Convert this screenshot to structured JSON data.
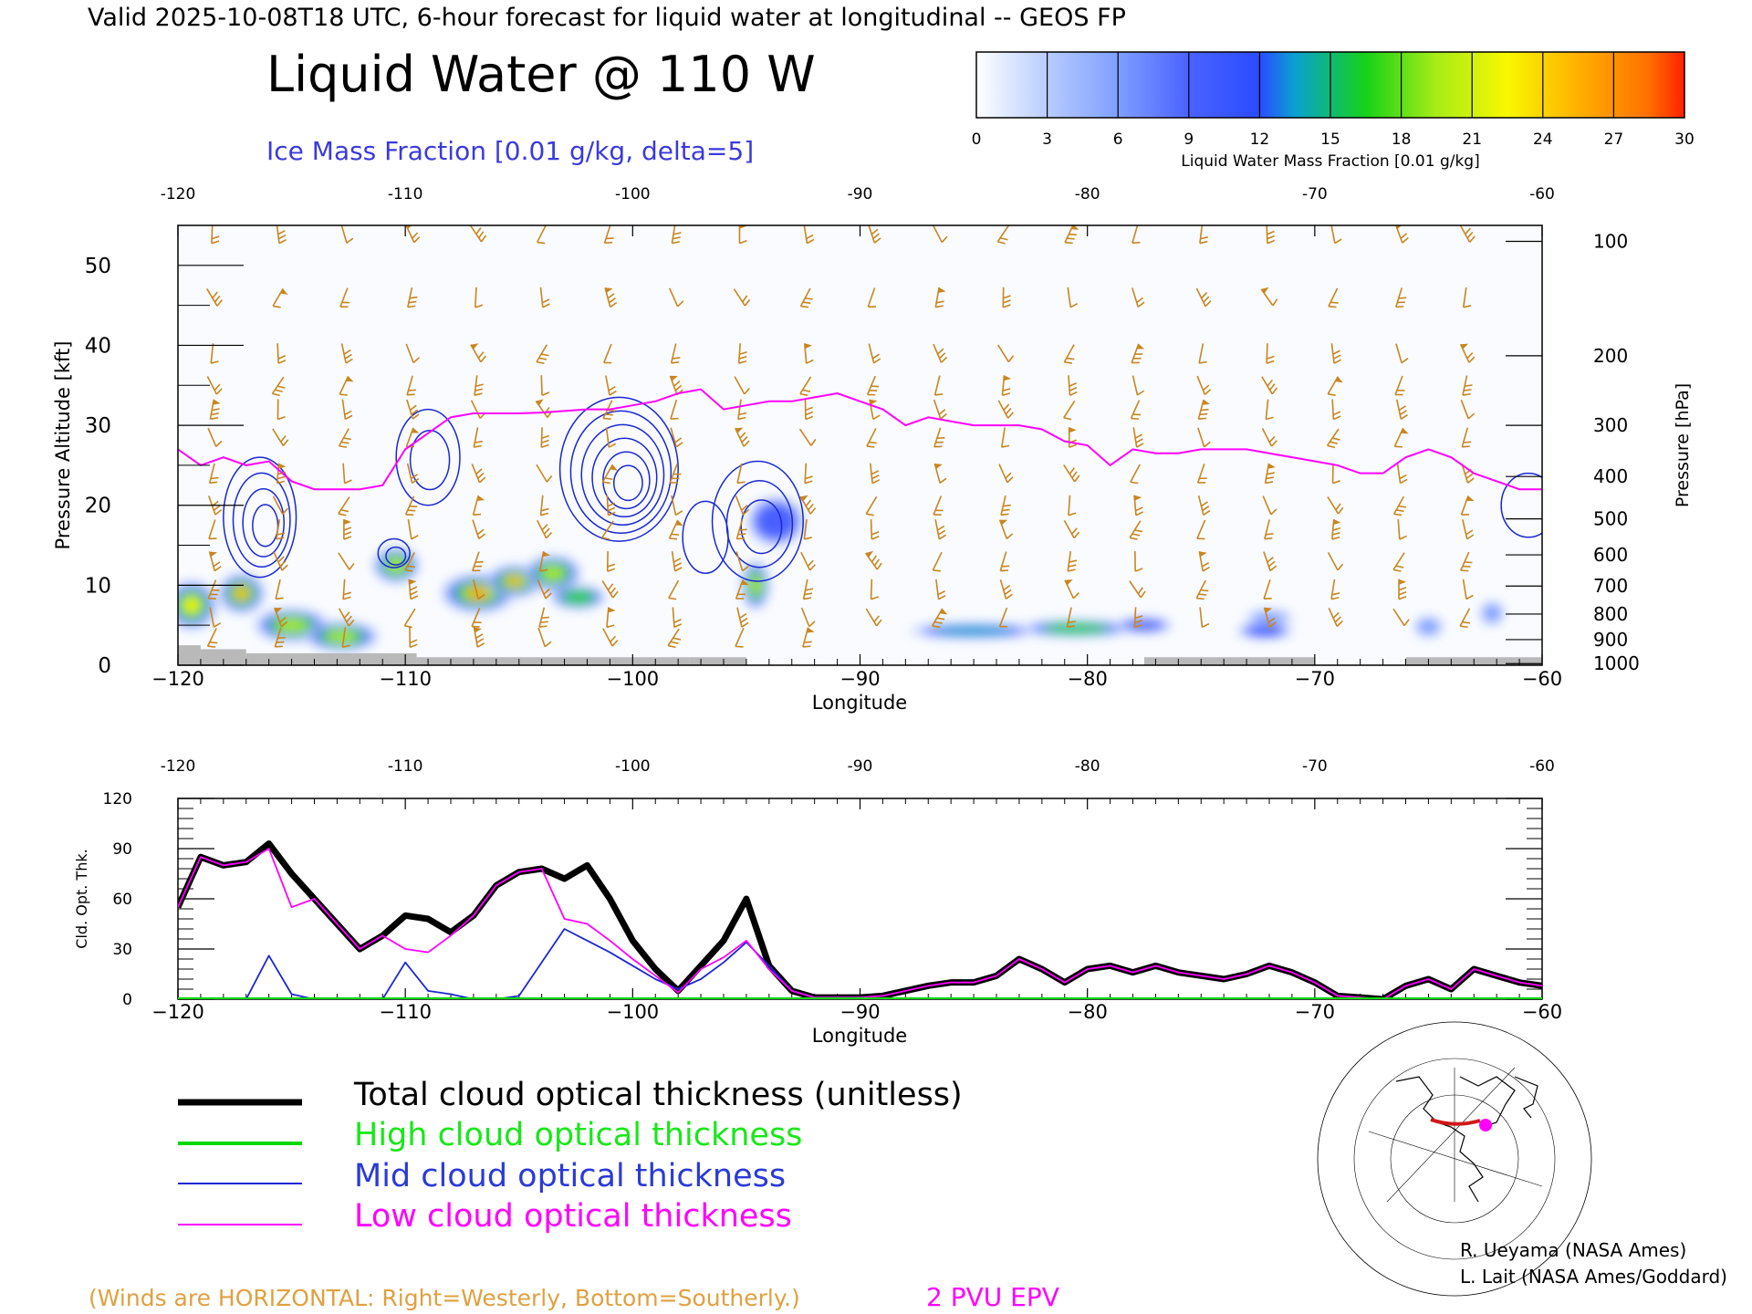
{
  "header": {
    "valid_line": "Valid 2025-10-08T18 UTC, 6-hour forecast for liquid water at longitudinal -- GEOS FP",
    "title": "Liquid Water @ 110 W",
    "ice_label": "Ice Mass Fraction [0.01 g/kg, delta=5]"
  },
  "colorbar": {
    "ticks": [
      "0",
      "3",
      "6",
      "9",
      "12",
      "15",
      "18",
      "21",
      "24",
      "27",
      "30"
    ],
    "label": "Liquid Water Mass Fraction [0.01 g/kg]",
    "colors": [
      "#ffffff",
      "#b8ccff",
      "#7f9fff",
      "#4a62ff",
      "#2a4cff",
      "#0aa0d0",
      "#16d218",
      "#a8ec18",
      "#f8f800",
      "#ffb000",
      "#ff7000",
      "#ff2000"
    ]
  },
  "colors": {
    "wind_barbs": "#c8861e",
    "ice_contour": "#1a28d2",
    "epv": "#ff00ff",
    "total": "#000000",
    "high": "#00d800",
    "mid": "#1a28d2",
    "low": "#ff00ff",
    "ground": "#b9b9b9"
  },
  "chart_data": [
    {
      "type": "heatmap",
      "title": "Liquid Water @ 110 W",
      "xlabel": "Longitude",
      "ylabel": "Pressure Altitude [kft]",
      "ylabel_right": "Pressure [hPa]",
      "xlim": [
        -120,
        -60
      ],
      "ylim": [
        0,
        55
      ],
      "xticks": [
        "−120",
        "−110",
        "−100",
        "−90",
        "−80",
        "−70",
        "−60"
      ],
      "top_xticks": [
        "-120",
        "-110",
        "-100",
        "-90",
        "-80",
        "-70",
        "-60"
      ],
      "yticks": [
        "0",
        "10",
        "20",
        "30",
        "40",
        "50"
      ],
      "right_ticks": [
        {
          "label": "100",
          "alt": 53
        },
        {
          "label": "200",
          "alt": 38.7
        },
        {
          "label": "300",
          "alt": 30
        },
        {
          "label": "400",
          "alt": 23.6
        },
        {
          "label": "500",
          "alt": 18.3
        },
        {
          "label": "600",
          "alt": 13.8
        },
        {
          "label": "700",
          "alt": 9.9
        },
        {
          "label": "800",
          "alt": 6.4
        },
        {
          "label": "900",
          "alt": 3.2
        },
        {
          "label": "1000",
          "alt": 0.2
        }
      ],
      "liquid_water_blobs": [
        {
          "lon": -119.4,
          "alt": 7.5,
          "rlon": 1.1,
          "ralt": 3.0,
          "value": 20
        },
        {
          "lon": -117.2,
          "alt": 9.0,
          "rlon": 1.0,
          "ralt": 2.5,
          "value": 25
        },
        {
          "lon": -115.0,
          "alt": 5.0,
          "rlon": 1.6,
          "ralt": 2.0,
          "value": 17
        },
        {
          "lon": -112.8,
          "alt": 3.6,
          "rlon": 1.6,
          "ralt": 1.8,
          "value": 17
        },
        {
          "lon": -110.4,
          "alt": 12.5,
          "rlon": 1.0,
          "ralt": 2.2,
          "value": 18
        },
        {
          "lon": -106.8,
          "alt": 9.0,
          "rlon": 1.6,
          "ralt": 2.4,
          "value": 26
        },
        {
          "lon": -105.2,
          "alt": 10.5,
          "rlon": 1.2,
          "ralt": 2.0,
          "value": 24
        },
        {
          "lon": -103.5,
          "alt": 11.5,
          "rlon": 1.2,
          "ralt": 2.2,
          "value": 17
        },
        {
          "lon": -102.4,
          "alt": 8.5,
          "rlon": 1.2,
          "ralt": 1.4,
          "value": 15
        },
        {
          "lon": -94.6,
          "alt": 10.0,
          "rlon": 0.6,
          "ralt": 3.0,
          "value": 18
        },
        {
          "lon": -93.7,
          "alt": 18.0,
          "rlon": 1.2,
          "ralt": 3.0,
          "value": 8
        },
        {
          "lon": -85.0,
          "alt": 4.3,
          "rlon": 2.8,
          "ralt": 0.9,
          "value": 13
        },
        {
          "lon": -80.5,
          "alt": 4.6,
          "rlon": 2.4,
          "ralt": 1.0,
          "value": 15
        },
        {
          "lon": -77.5,
          "alt": 5.0,
          "rlon": 1.2,
          "ralt": 0.9,
          "value": 9
        },
        {
          "lon": -72.2,
          "alt": 4.3,
          "rlon": 1.2,
          "ralt": 0.9,
          "value": 11
        },
        {
          "lon": -72.0,
          "alt": 6.0,
          "rlon": 1.0,
          "ralt": 0.8,
          "value": 6
        },
        {
          "lon": -65.0,
          "alt": 4.8,
          "rlon": 0.6,
          "ralt": 1.2,
          "value": 5
        },
        {
          "lon": -62.2,
          "alt": 6.5,
          "rlon": 0.5,
          "ralt": 1.4,
          "value": 6
        }
      ],
      "ice_contours": [
        {
          "lon": -116.4,
          "alt": 18.5,
          "rlon": 1.6,
          "ralt": 7.5,
          "levels": 4
        },
        {
          "lon": -109.0,
          "alt": 26.0,
          "rlon": 1.4,
          "ralt": 6.0,
          "levels": 2
        },
        {
          "lon": -110.5,
          "alt": 14.0,
          "rlon": 0.7,
          "ralt": 1.8,
          "levels": 2
        },
        {
          "lon": -100.6,
          "alt": 24.5,
          "rlon": 2.6,
          "ralt": 9.0,
          "levels": 6
        },
        {
          "lon": -96.8,
          "alt": 16.0,
          "rlon": 1.0,
          "ralt": 4.5,
          "levels": 1
        },
        {
          "lon": -94.5,
          "alt": 18.0,
          "rlon": 2.0,
          "ralt": 7.5,
          "levels": 3
        },
        {
          "lon": -60.6,
          "alt": 20.0,
          "rlon": 1.2,
          "ralt": 4.0,
          "levels": 1
        }
      ],
      "epv_2pvu": {
        "lon": [
          -120,
          -119,
          -118,
          -117,
          -116,
          -115,
          -114,
          -113,
          -112,
          -111,
          -110,
          -109,
          -108,
          -107,
          -106,
          -105,
          -104,
          -103,
          -102,
          -101,
          -100,
          -99,
          -98,
          -97,
          -96,
          -95,
          -94,
          -93,
          -92,
          -91,
          -90,
          -89,
          -88,
          -87,
          -86,
          -85,
          -84,
          -83,
          -82,
          -81,
          -80,
          -79,
          -78,
          -77,
          -76,
          -75,
          -74,
          -73,
          -72,
          -71,
          -70,
          -69,
          -68,
          -67,
          -66,
          -65,
          -64,
          -63,
          -62,
          -61,
          -60
        ],
        "alt": [
          27,
          25,
          26,
          25,
          25.5,
          23,
          22,
          22,
          22,
          22.5,
          27,
          29,
          31,
          31.5,
          31.5,
          31.5,
          31.6,
          31.8,
          32,
          32,
          32.5,
          33,
          34,
          34.5,
          32,
          32.5,
          33,
          33,
          33.5,
          34,
          33,
          32,
          30,
          31,
          30.5,
          30,
          30,
          30,
          29.5,
          28,
          27.5,
          25,
          27,
          26.5,
          26.5,
          27,
          27,
          27,
          26.5,
          26,
          25.5,
          25,
          24,
          24,
          26,
          27,
          26,
          24,
          23,
          22,
          22
        ]
      },
      "ground_bars": [
        {
          "lon0": -120,
          "lon1": -119,
          "alt": 2.5
        },
        {
          "lon0": -119,
          "lon1": -117,
          "alt": 2.0
        },
        {
          "lon0": -117,
          "lon1": -109.5,
          "alt": 1.5
        },
        {
          "lon0": -109.5,
          "lon1": -97.5,
          "alt": 1.0
        },
        {
          "lon0": -97.5,
          "lon1": -95,
          "alt": 1.0
        },
        {
          "lon0": -77.5,
          "lon1": -70,
          "alt": 1.0
        },
        {
          "lon0": -66,
          "lon1": -60,
          "alt": 1.0
        }
      ],
      "wind_barb_grid": {
        "lon0": -118.5,
        "dlon": 2.9,
        "alts": [
          54,
          46,
          39,
          35,
          32,
          28.5,
          24,
          20,
          17,
          13,
          9.5,
          6,
          3.5
        ]
      }
    },
    {
      "type": "line",
      "ylabel": "Cld. Opt. Thk.",
      "xlabel": "Longitude",
      "xlim": [
        -120,
        -60
      ],
      "ylim": [
        0,
        120
      ],
      "xticks": [
        "−120",
        "−110",
        "−100",
        "−90",
        "−80",
        "−70",
        "−60"
      ],
      "top_xticks": [
        "-120",
        "-110",
        "-100",
        "-90",
        "-80",
        "-70",
        "-60"
      ],
      "yticks": [
        "0",
        "30",
        "60",
        "90",
        "120"
      ],
      "x": [
        -120,
        -119,
        -118,
        -117,
        -116,
        -115,
        -114,
        -113,
        -112,
        -111,
        -110,
        -109,
        -108,
        -107,
        -106,
        -105,
        -104,
        -103,
        -102,
        -101,
        -100,
        -99,
        -98,
        -97,
        -96,
        -95,
        -94,
        -93,
        -92,
        -91,
        -90,
        -89,
        -88,
        -87,
        -86,
        -85,
        -84,
        -83,
        -82,
        -81,
        -80,
        -79,
        -78,
        -77,
        -76,
        -75,
        -74,
        -73,
        -72,
        -71,
        -70,
        -69,
        -68,
        -67,
        -66,
        -65,
        -64,
        -63,
        -62,
        -61,
        -60
      ],
      "series": [
        {
          "name": "Total cloud optical thickness (unitless)",
          "values": [
            55,
            85,
            80,
            82,
            93,
            75,
            60,
            45,
            30,
            38,
            50,
            48,
            40,
            50,
            68,
            76,
            78,
            72,
            80,
            60,
            35,
            18,
            5,
            20,
            35,
            60,
            20,
            5,
            1,
            1,
            1,
            2,
            5,
            8,
            10,
            10,
            14,
            24,
            18,
            10,
            18,
            20,
            16,
            20,
            16,
            14,
            12,
            15,
            20,
            16,
            10,
            2,
            1,
            0,
            8,
            12,
            6,
            18,
            14,
            10,
            8
          ]
        },
        {
          "name": "High cloud optical thickness",
          "values": [
            0,
            0,
            0,
            0,
            0,
            0,
            0,
            0,
            0,
            0,
            0,
            0,
            0,
            0,
            0,
            0,
            0,
            0,
            0,
            0,
            0,
            0,
            0,
            0,
            0,
            0,
            0,
            0,
            0,
            0,
            0,
            0,
            0,
            0,
            0,
            0,
            0,
            0,
            0,
            0,
            0,
            0,
            0,
            0,
            0,
            0,
            0,
            0,
            0,
            0,
            0,
            0,
            0,
            0,
            0,
            0,
            0,
            0,
            0,
            0,
            0
          ]
        },
        {
          "name": "Mid cloud optical thickness",
          "values": [
            0,
            0,
            0,
            0,
            26,
            3,
            0,
            0,
            0,
            0,
            22,
            5,
            3,
            0,
            0,
            2,
            22,
            42,
            35,
            28,
            20,
            12,
            6,
            12,
            22,
            34,
            20,
            5,
            1,
            1,
            1,
            0,
            0,
            0,
            0,
            0,
            0,
            0,
            0,
            0,
            0,
            0,
            0,
            0,
            0,
            0,
            0,
            0,
            0,
            0,
            0,
            0,
            0,
            0,
            0,
            0,
            0,
            0,
            0,
            0,
            0
          ]
        },
        {
          "name": "Low cloud optical thickness",
          "values": [
            55,
            85,
            80,
            82,
            90,
            55,
            60,
            45,
            30,
            38,
            30,
            28,
            38,
            50,
            68,
            76,
            78,
            48,
            45,
            35,
            24,
            14,
            4,
            18,
            25,
            35,
            18,
            5,
            1,
            1,
            1,
            2,
            5,
            8,
            10,
            10,
            14,
            24,
            18,
            10,
            18,
            20,
            16,
            20,
            16,
            14,
            12,
            15,
            20,
            16,
            10,
            2,
            1,
            0,
            8,
            12,
            6,
            18,
            14,
            10,
            8
          ]
        }
      ]
    }
  ],
  "legend": {
    "total": "Total cloud optical thickness (unitless)",
    "high": "High cloud optical thickness",
    "mid": "Mid cloud optical thickness",
    "low": "Low cloud optical thickness"
  },
  "credits": {
    "line1": "R. Ueyama (NASA Ames)",
    "line2": "L. Lait (NASA Ames/Goddard)"
  },
  "footer": {
    "winds_note": "(Winds are HORIZONTAL: Right=Westerly, Bottom=Southerly.)",
    "epv_label": "2 PVU EPV"
  }
}
